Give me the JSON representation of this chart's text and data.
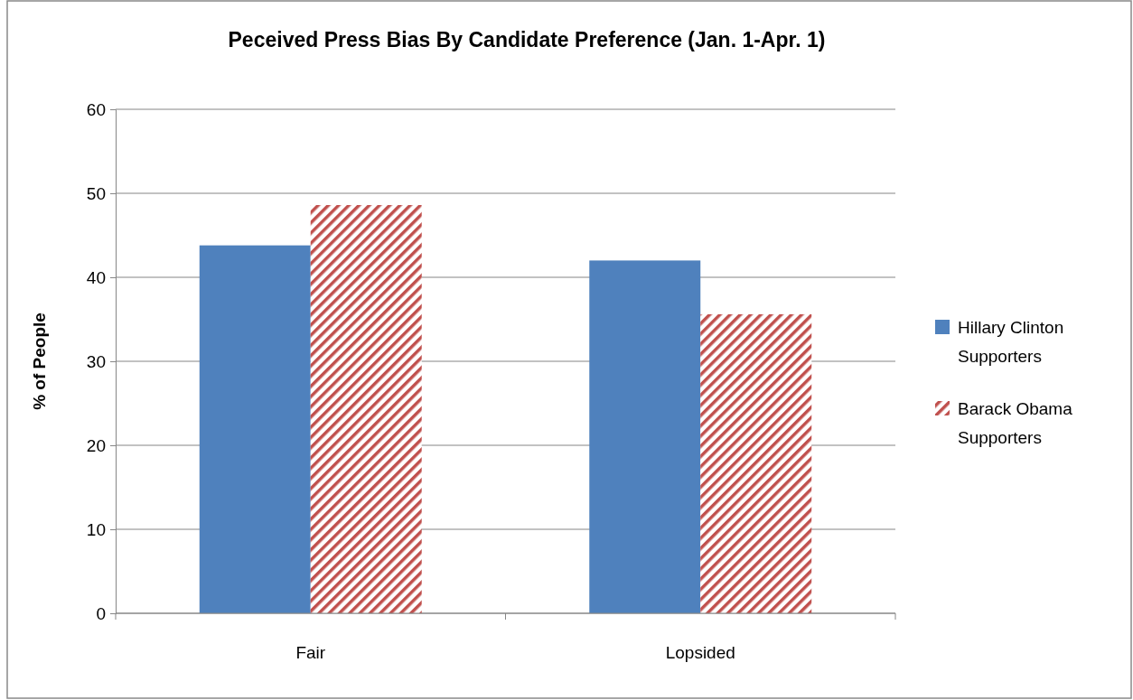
{
  "chart_data": {
    "type": "bar",
    "title": "Peceived Press Bias By Candidate Preference (Jan. 1-Apr. 1)",
    "ylabel": "% of People",
    "categories": [
      "Fair",
      "Lopsided"
    ],
    "series": [
      {
        "name": "Hillary Clinton Supporters",
        "color": "#4f81bd",
        "values": [
          43.8,
          42.0
        ]
      },
      {
        "name": "Barack Obama Supporters",
        "color": "#c0504d",
        "values": [
          48.6,
          35.6
        ]
      }
    ],
    "ylim": [
      0,
      60
    ],
    "yticks": [
      0,
      10,
      20,
      30,
      40,
      50,
      60
    ],
    "grid": "y",
    "legend": "right"
  }
}
